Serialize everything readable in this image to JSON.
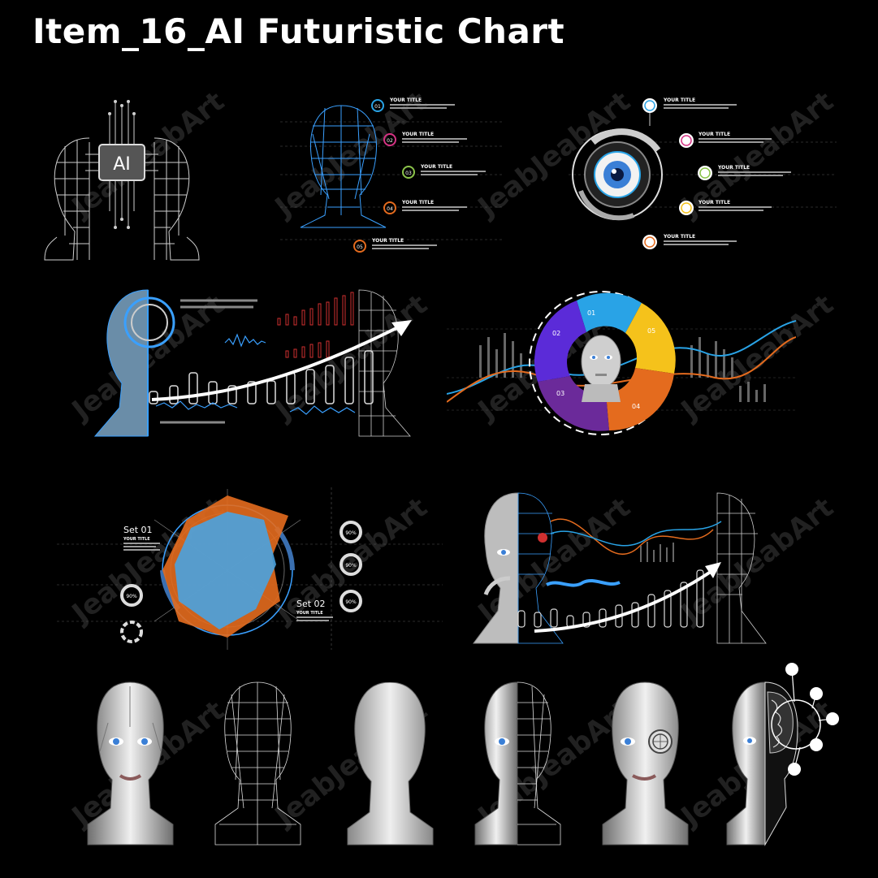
{
  "title": "Item_16_AI Futuristic Chart",
  "watermark": "JeabJeabArt",
  "chip_label": "AI",
  "your_title": "YOUR TITLE",
  "numbers": [
    "01",
    "02",
    "03",
    "04",
    "05"
  ],
  "set01": "Set 01",
  "set02": "Set 02",
  "percent": "90%",
  "colors": {
    "background": "#000000",
    "wire": "#3aa0ff",
    "blue": "#29a3e6",
    "orange": "#e46b1e",
    "purple": "#6b2a9a",
    "yellow": "#f5c21b",
    "violet": "#5b2bd8",
    "magenta": "#d63384",
    "green": "#8bc34a"
  },
  "icons": [
    "ai-chip-icon",
    "wireframe-head-icon",
    "eye-icon",
    "robot-head-icon",
    "brain-icon"
  ]
}
